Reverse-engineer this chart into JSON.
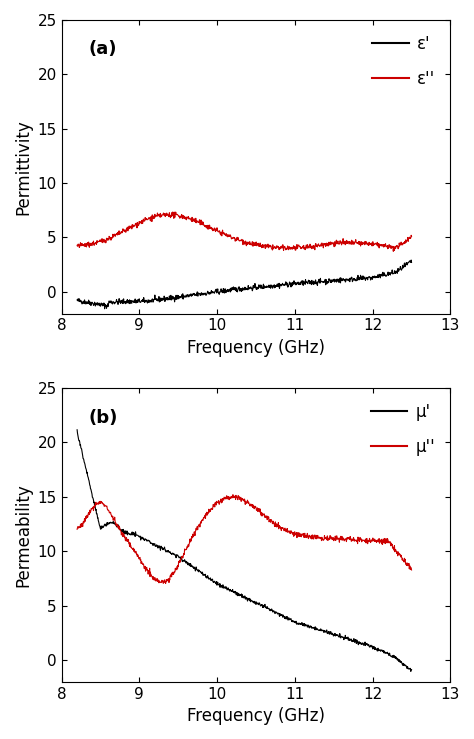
{
  "panel_a": {
    "label": "(a)",
    "ylabel": "Permittivity",
    "xlabel": "Frequency (GHz)",
    "xlim": [
      8,
      13
    ],
    "ylim": [
      -2,
      25
    ],
    "yticks": [
      0,
      5,
      10,
      15,
      20,
      25
    ],
    "xticks": [
      8,
      9,
      10,
      11,
      12,
      13
    ],
    "legend": [
      "ε'",
      "ε''"
    ],
    "colors": [
      "#000000",
      "#cc0000"
    ]
  },
  "panel_b": {
    "label": "(b)",
    "ylabel": "Permeability",
    "xlabel": "Frequency (GHz)",
    "xlim": [
      8,
      13
    ],
    "ylim": [
      -2,
      25
    ],
    "yticks": [
      0,
      5,
      10,
      15,
      20,
      25
    ],
    "xticks": [
      8,
      9,
      10,
      11,
      12,
      13
    ],
    "legend": [
      "μ'",
      "μ''"
    ],
    "colors": [
      "#000000",
      "#cc0000"
    ]
  },
  "freq_start": 8.2,
  "freq_end": 12.5,
  "noise_seed": 42,
  "noise_amplitude": 0.12,
  "background_color": "#ffffff",
  "figsize": [
    4.74,
    7.39
  ],
  "dpi": 100
}
